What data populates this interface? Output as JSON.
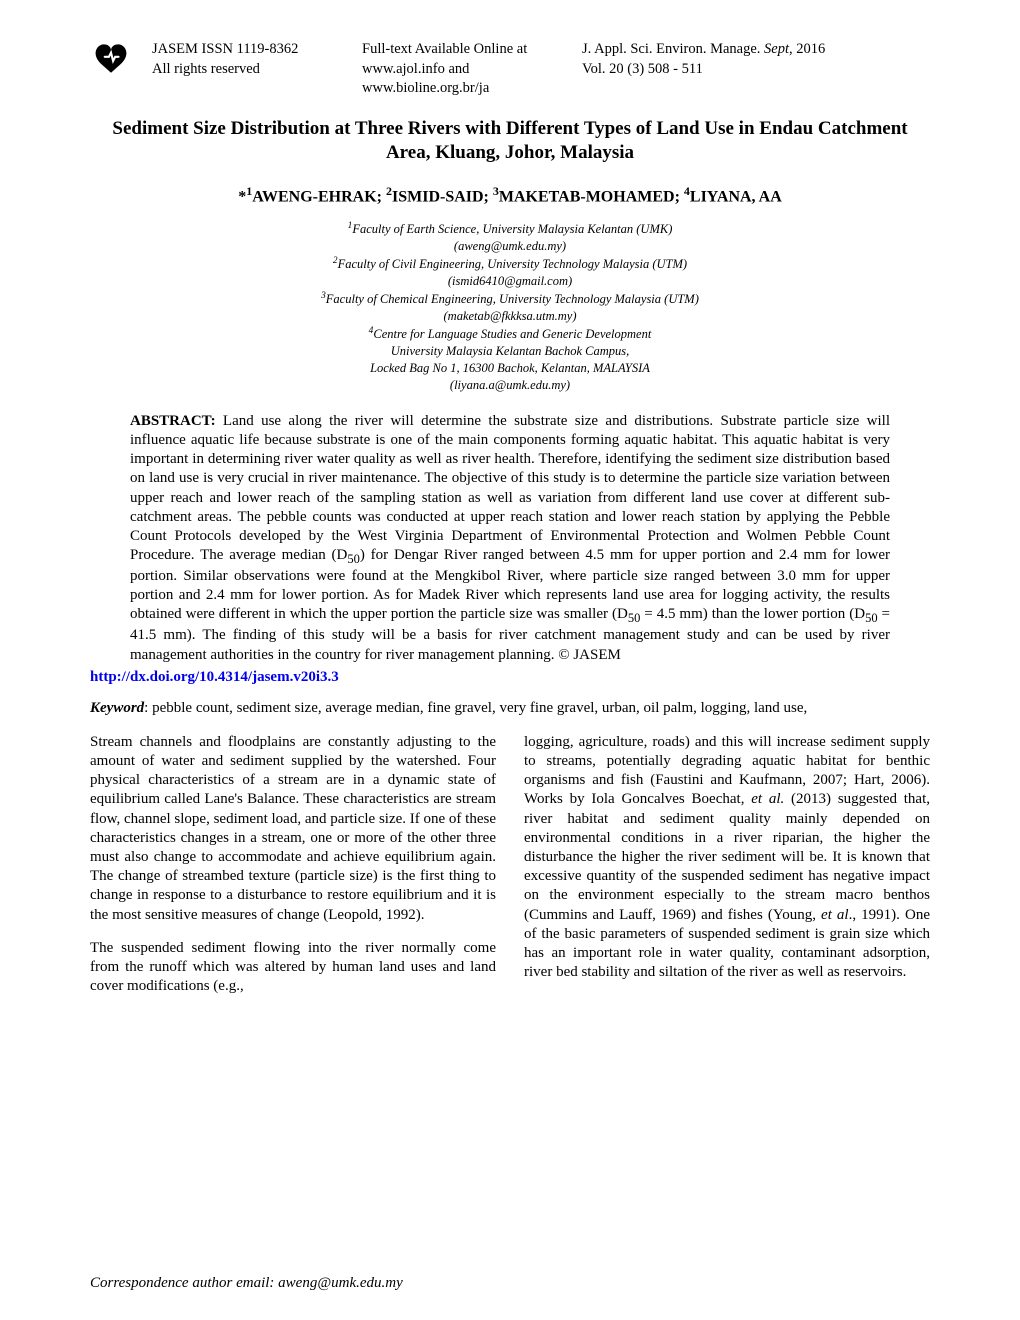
{
  "header": {
    "issn_line1": "JASEM ISSN 1119-8362",
    "issn_line2": "All rights reserved",
    "fulltext_line1": "Full-text Available Online at",
    "fulltext_line2": "www.ajol.info      and",
    "fulltext_line3": "www.bioline.org.br/ja",
    "journal_line1_prefix": "J. Appl. Sci. Environ. Manage. ",
    "journal_line1_italic": "Sept",
    "journal_line1_suffix": ", 2016",
    "journal_line2": "Vol. 20 (3) 508 - 511"
  },
  "title": "Sediment Size Distribution at Three Rivers with Different Types of Land Use in Endau Catchment Area, Kluang, Johor, Malaysia",
  "authors_html": "*<sup>1</sup>AWENG-EHRAK; <sup>2</sup>ISMID-SAID; <sup>3</sup>MAKETAB-MOHAMED; <sup>4</sup>LIYANA, AA",
  "affiliations_html": "<sup>1</sup>Faculty of Earth Science, University Malaysia Kelantan (UMK)<br>(aweng@umk.edu.my)<br><sup>2</sup>Faculty of Civil Engineering, University Technology Malaysia (UTM)<br>(ismid6410@gmail.com)<br><sup>3</sup>Faculty of Chemical Engineering, University Technology Malaysia (UTM)<br>(maketab@fkkksa.utm.my)<br><sup>4</sup>Centre for Language Studies and Generic Development<br>University Malaysia Kelantan Bachok Campus,<br>Locked Bag No 1, 16300 Bachok, Kelantan, MALAYSIA<br>(liyana.a@umk.edu.my)",
  "abstract_label": "ABSTRACT:",
  "abstract_html": "Land use along the river will determine the substrate size and distributions.  Substrate particle size will influence aquatic life because substrate is one of the main components forming aquatic habitat. This aquatic habitat is very important in determining river water quality as well as river health.  Therefore, identifying the sediment size distribution based on land use is very crucial in river maintenance.  The objective of this study is to determine the particle size variation between upper reach and lower reach of the sampling station as well as variation from different land use cover at different sub-catchment areas. The pebble counts was conducted at upper reach station and lower reach station by applying the Pebble Count Protocols developed by the West Virginia Department of Environmental Protection and Wolmen Pebble Count Procedure.  The average median (D<sub>50</sub>) for Dengar River ranged between 4.5 mm for upper portion and 2.4 mm for lower portion. Similar observations were found at the Mengkibol River, where particle size ranged between 3.0 mm for upper portion and 2.4 mm for lower portion. As for Madek River which represents land use area for logging activity, the results obtained were different in which the upper portion the particle size was smaller (D<sub>50</sub> = 4.5 mm) than the lower portion (D<sub>50</sub> = 41.5 mm).  The finding of this study will be a basis for river catchment management study and can be used by river management authorities in the country for river management planning. © JASEM",
  "doi": "http://dx.doi.org/10.4314/jasem.v20i3.3",
  "keyword_label": "Keyword",
  "keyword_text": ": pebble count, sediment size, average median, fine gravel, very fine gravel, urban, oil palm, logging, land use,",
  "body": {
    "col1_p1": "Stream channels and floodplains are constantly adjusting to the amount of water and sediment supplied by the watershed.  Four physical characteristics of a stream are in a dynamic state of equilibrium called Lane's Balance.  These characteristics are stream flow, channel slope, sediment load, and particle size.  If one of these characteristics changes in a stream, one or more of the other three must also change to accommodate and achieve equilibrium again.  The change of streambed texture (particle size) is the first thing to change in response to a disturbance to restore equilibrium and it is the most sensitive measures of change (Leopold, 1992).",
    "col1_p2_start": " The suspended sediment flowing into the river normally come from the runoff which was altered by human land uses and land cover modifications (e.g.,",
    "col2_p1_html": "logging, agriculture, roads)  and this will  increase sediment supply to streams, potentially degrading aquatic habitat for benthic organisms and fish (Faustini and Kaufmann, 2007; Hart, 2006).  Works by Iola Goncalves Boechat, <i>et al.</i> (2013) suggested that, river habitat and sediment quality mainly depended on environmental conditions in a river riparian, the higher the disturbance the higher the river sediment will be.  It is known that excessive quantity of the suspended sediment has negative impact on the environment especially to the stream macro benthos (Cummins and Lauff, 1969) and fishes (Young, <i>et al</i>., 1991). One of the basic parameters of suspended sediment is grain size which has an important role in water quality, contaminant adsorption, river bed stability and siltation of the river as well as reservoirs."
  },
  "footer": "Correspondence author email: aweng@umk.edu.my",
  "logo": {
    "fill": "#000000",
    "stroke": "#000000"
  }
}
